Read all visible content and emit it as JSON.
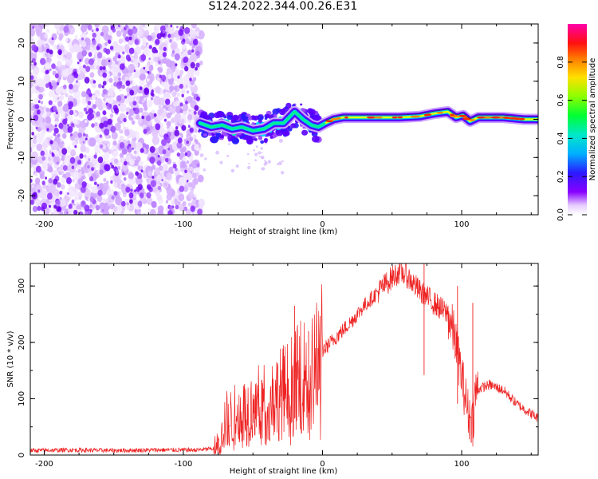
{
  "title": "S124.2022.344.00.26.E31",
  "chart_data": [
    {
      "type": "heatmap",
      "xlabel": "Height of straight line (km)",
      "ylabel": "Frequency (Hz)",
      "xlim": [
        -210,
        155
      ],
      "ylim": [
        -25,
        25
      ],
      "xticks": [
        -200,
        -100,
        0,
        100
      ],
      "yticks": [
        -20,
        -10,
        0,
        10,
        20
      ],
      "colorbar": {
        "label": "Normalized spectral amplitude",
        "range": [
          0,
          1
        ],
        "ticks": [
          "0.0",
          "0.2",
          "0.4",
          "0.6",
          "0.8"
        ],
        "colormap": "rainbow (violet to magenta)"
      },
      "noise_region": {
        "x": [
          -210,
          -88
        ],
        "freq": [
          -25,
          25
        ]
      },
      "ridge": {
        "x": [
          -88,
          -80,
          -72,
          -65,
          -58,
          -50,
          -42,
          -35,
          -28,
          -20,
          -14,
          -8,
          -3,
          2,
          8,
          15,
          25,
          40,
          55,
          70,
          80,
          90,
          96,
          101,
          106,
          112,
          120,
          130,
          145,
          155
        ],
        "freq": [
          -1,
          -2,
          -1.5,
          -2.5,
          -2,
          -3,
          -2.5,
          -1,
          -1,
          2,
          0,
          -1.5,
          -2,
          -1,
          0,
          0.5,
          0.5,
          0.5,
          0.5,
          0.8,
          1.5,
          2,
          0.5,
          1,
          -0.5,
          0.5,
          0.5,
          0.5,
          0,
          0
        ]
      }
    },
    {
      "type": "line",
      "xlabel": "Height of straight line (km)",
      "ylabel": "SNR (10 * v/v)",
      "xlim": [
        -210,
        155
      ],
      "ylim": [
        0,
        340
      ],
      "xticks": [
        -200,
        -100,
        0,
        100
      ],
      "yticks": [
        0,
        100,
        200,
        300
      ],
      "series": [
        {
          "color": "#ee2222",
          "x": [
            -210,
            -180,
            -150,
            -120,
            -90,
            -76,
            -70,
            -60,
            -50,
            -40,
            -30,
            -20,
            -10,
            0,
            10,
            20,
            30,
            40,
            50,
            55,
            60,
            65,
            70,
            80,
            90,
            95,
            100,
            105,
            108,
            110,
            120,
            130,
            140,
            155
          ],
          "values": [
            8,
            9,
            8,
            9,
            9,
            12,
            60,
            70,
            85,
            95,
            110,
            130,
            150,
            185,
            210,
            235,
            265,
            290,
            315,
            325,
            320,
            305,
            290,
            270,
            250,
            210,
            140,
            70,
            60,
            115,
            125,
            115,
            90,
            65
          ]
        }
      ],
      "spikes": [
        {
          "x": -20,
          "value": 265
        },
        {
          "x": -10,
          "value": 220
        },
        {
          "x": 73,
          "value": 340
        },
        {
          "x": 97,
          "value": 300
        },
        {
          "x": 108,
          "value": 270
        }
      ]
    }
  ]
}
